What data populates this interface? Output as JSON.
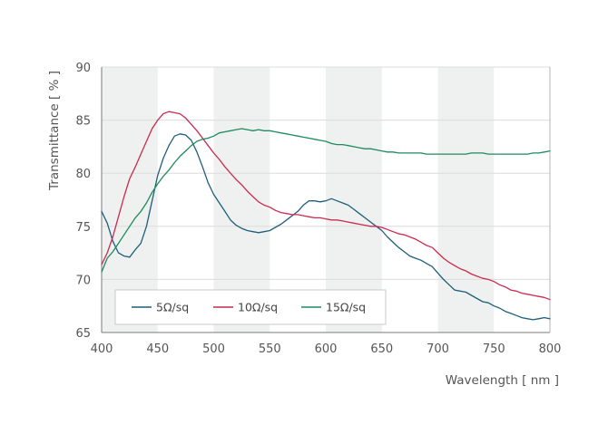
{
  "chart_data": {
    "type": "line",
    "xlabel": "Wavelength [ nm ]",
    "ylabel": "Transmittance [ % ]",
    "xlim": [
      400,
      800
    ],
    "ylim": [
      65,
      90
    ],
    "xticks": [
      "400",
      "450",
      "500",
      "550",
      "600",
      "650",
      "700",
      "750",
      "800"
    ],
    "yticks": [
      "65",
      "70",
      "75",
      "80",
      "85",
      "90"
    ],
    "grid": "alternating shaded vertical bands",
    "legend_position": "bottom-left",
    "series": [
      {
        "name": "5Ω/sq",
        "color": "#1f5f7a",
        "x": [
          400,
          405,
          410,
          415,
          420,
          425,
          430,
          435,
          440,
          445,
          450,
          455,
          460,
          465,
          470,
          475,
          480,
          485,
          490,
          495,
          500,
          505,
          510,
          515,
          520,
          525,
          530,
          535,
          540,
          545,
          550,
          555,
          560,
          565,
          570,
          575,
          580,
          585,
          590,
          595,
          600,
          605,
          610,
          615,
          620,
          625,
          630,
          635,
          640,
          645,
          650,
          655,
          660,
          665,
          670,
          675,
          680,
          685,
          690,
          695,
          700,
          705,
          710,
          715,
          720,
          725,
          730,
          735,
          740,
          745,
          750,
          755,
          760,
          765,
          770,
          775,
          780,
          785,
          790,
          795,
          800
        ],
        "y": [
          76.4,
          75.3,
          73.6,
          72.5,
          72.2,
          72.1,
          72.8,
          73.4,
          75.0,
          77.4,
          79.8,
          81.4,
          82.6,
          83.5,
          83.7,
          83.6,
          83.1,
          82.0,
          80.6,
          79.1,
          78.0,
          77.2,
          76.4,
          75.6,
          75.1,
          74.8,
          74.6,
          74.5,
          74.4,
          74.5,
          74.6,
          74.9,
          75.2,
          75.6,
          76.0,
          76.4,
          77.0,
          77.4,
          77.4,
          77.3,
          77.4,
          77.6,
          77.4,
          77.2,
          77.0,
          76.6,
          76.2,
          75.8,
          75.4,
          75.0,
          74.6,
          74.0,
          73.5,
          73.0,
          72.6,
          72.2,
          72.0,
          71.8,
          71.5,
          71.2,
          70.6,
          70.0,
          69.5,
          69.0,
          68.9,
          68.8,
          68.5,
          68.2,
          67.9,
          67.8,
          67.5,
          67.3,
          67.0,
          66.8,
          66.6,
          66.4,
          66.3,
          66.2,
          66.3,
          66.4,
          66.3
        ]
      },
      {
        "name": "10Ω/sq",
        "color": "#cc2a50",
        "x": [
          400,
          405,
          410,
          415,
          420,
          425,
          430,
          435,
          440,
          445,
          450,
          455,
          460,
          465,
          470,
          475,
          480,
          485,
          490,
          495,
          500,
          505,
          510,
          515,
          520,
          525,
          530,
          535,
          540,
          545,
          550,
          555,
          560,
          565,
          570,
          575,
          580,
          585,
          590,
          595,
          600,
          605,
          610,
          615,
          620,
          625,
          630,
          635,
          640,
          645,
          650,
          655,
          660,
          665,
          670,
          675,
          680,
          685,
          690,
          695,
          700,
          705,
          710,
          715,
          720,
          725,
          730,
          735,
          740,
          745,
          750,
          755,
          760,
          765,
          770,
          775,
          780,
          785,
          790,
          795,
          800
        ],
        "y": [
          71.4,
          72.5,
          74.0,
          75.9,
          77.8,
          79.5,
          80.6,
          81.8,
          83.0,
          84.2,
          85.0,
          85.6,
          85.8,
          85.7,
          85.6,
          85.2,
          84.6,
          84.0,
          83.3,
          82.6,
          81.9,
          81.3,
          80.6,
          80.0,
          79.4,
          78.9,
          78.3,
          77.8,
          77.3,
          77.0,
          76.8,
          76.5,
          76.3,
          76.2,
          76.1,
          76.1,
          76.0,
          75.9,
          75.8,
          75.8,
          75.7,
          75.6,
          75.6,
          75.5,
          75.4,
          75.3,
          75.2,
          75.1,
          75.0,
          75.0,
          74.9,
          74.7,
          74.5,
          74.3,
          74.2,
          74.0,
          73.8,
          73.5,
          73.2,
          73.0,
          72.5,
          72.0,
          71.6,
          71.3,
          71.0,
          70.8,
          70.5,
          70.3,
          70.1,
          70.0,
          69.8,
          69.5,
          69.3,
          69.0,
          68.9,
          68.7,
          68.6,
          68.5,
          68.4,
          68.3,
          68.1
        ]
      },
      {
        "name": "15Ω/sq",
        "color": "#1f8a5e",
        "x": [
          400,
          405,
          410,
          415,
          420,
          425,
          430,
          435,
          440,
          445,
          450,
          455,
          460,
          465,
          470,
          475,
          480,
          485,
          490,
          495,
          500,
          505,
          510,
          515,
          520,
          525,
          530,
          535,
          540,
          545,
          550,
          555,
          560,
          565,
          570,
          575,
          580,
          585,
          590,
          595,
          600,
          605,
          610,
          615,
          620,
          625,
          630,
          635,
          640,
          645,
          650,
          655,
          660,
          665,
          670,
          675,
          680,
          685,
          690,
          695,
          700,
          705,
          710,
          715,
          720,
          725,
          730,
          735,
          740,
          745,
          750,
          755,
          760,
          765,
          770,
          775,
          780,
          785,
          790,
          795,
          800
        ],
        "y": [
          70.7,
          72.0,
          72.6,
          73.4,
          74.2,
          75.0,
          75.8,
          76.4,
          77.2,
          78.2,
          79.0,
          79.7,
          80.3,
          81.0,
          81.6,
          82.1,
          82.6,
          83.0,
          83.2,
          83.3,
          83.5,
          83.8,
          83.9,
          84.0,
          84.1,
          84.2,
          84.1,
          84.0,
          84.1,
          84.0,
          84.0,
          83.9,
          83.8,
          83.7,
          83.6,
          83.5,
          83.4,
          83.3,
          83.2,
          83.1,
          83.0,
          82.8,
          82.7,
          82.7,
          82.6,
          82.5,
          82.4,
          82.3,
          82.3,
          82.2,
          82.1,
          82.0,
          82.0,
          81.9,
          81.9,
          81.9,
          81.9,
          81.9,
          81.8,
          81.8,
          81.8,
          81.8,
          81.8,
          81.8,
          81.8,
          81.8,
          81.9,
          81.9,
          81.9,
          81.8,
          81.8,
          81.8,
          81.8,
          81.8,
          81.8,
          81.8,
          81.8,
          81.9,
          81.9,
          82.0,
          82.1
        ]
      }
    ]
  }
}
